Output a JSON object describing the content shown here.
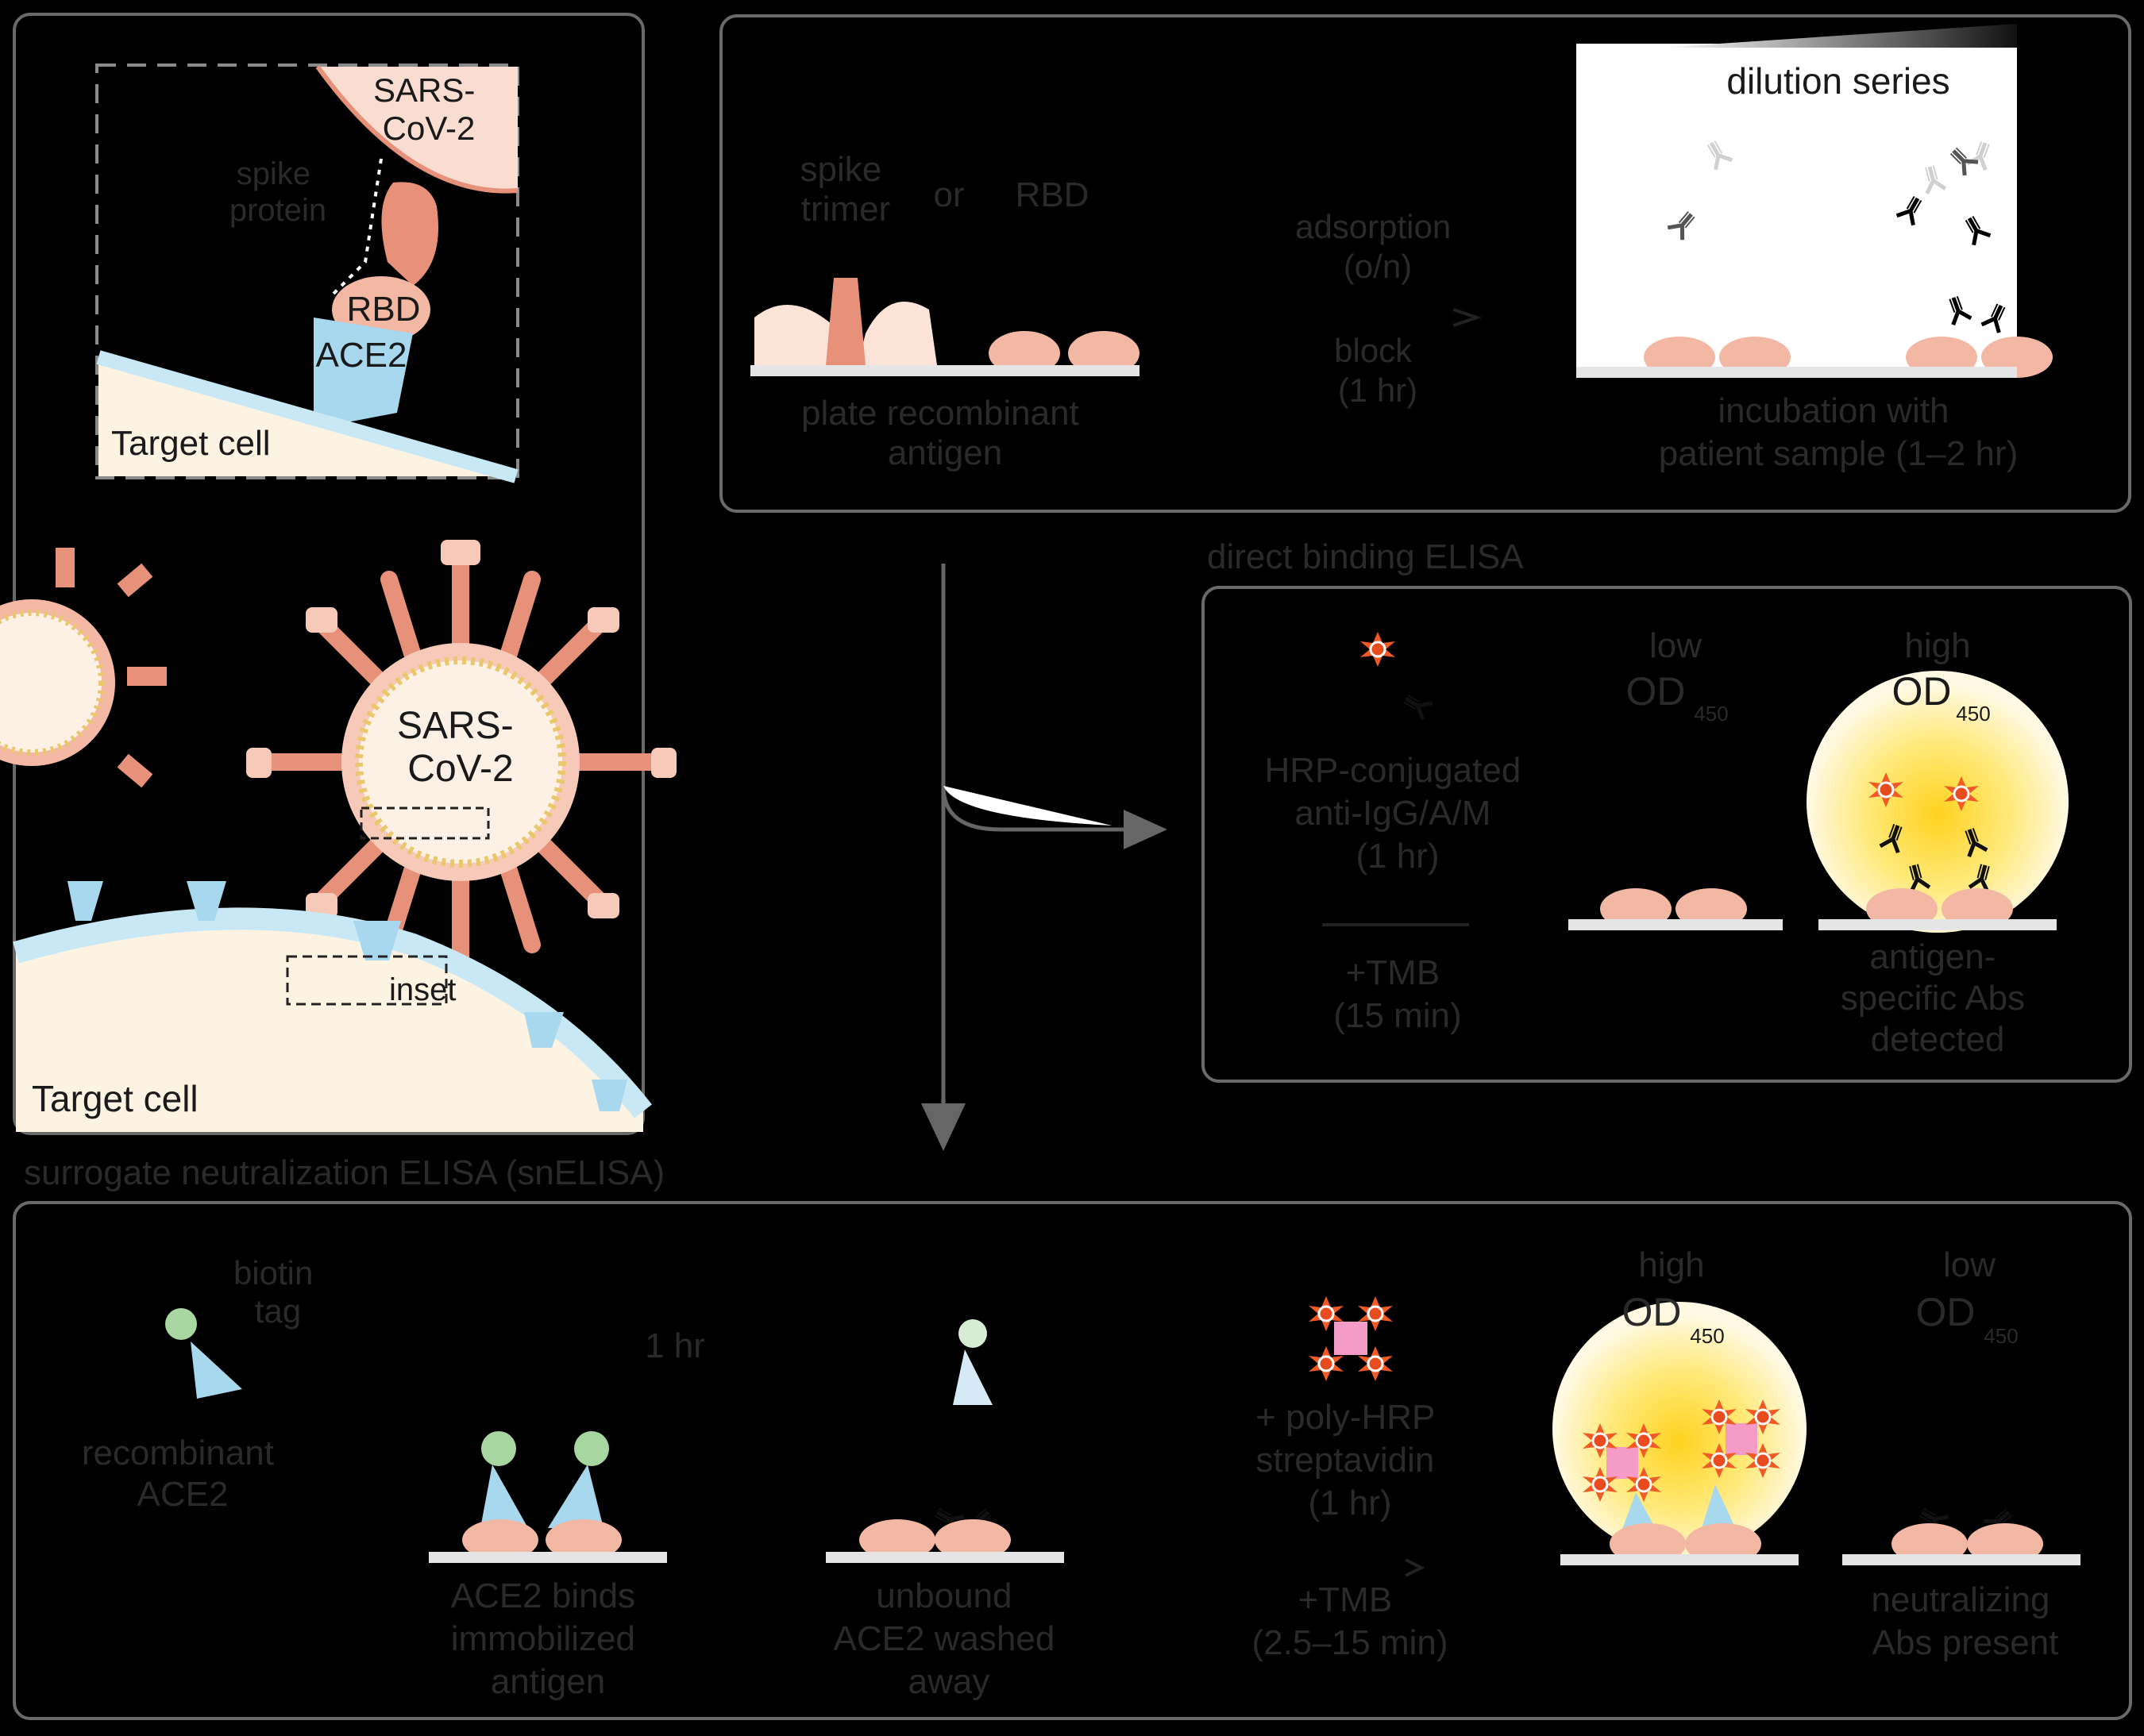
{
  "virus_panel": {
    "inset": {
      "virus_label": "SARS-\nCoV-2",
      "spike_label": "spike\nprotein",
      "rbd_label": "RBD",
      "ace2_label": "ACE2",
      "cell_label": "Target cell"
    },
    "main": {
      "virus_label": "SARS-\nCoV-2",
      "inset_label": "inset",
      "cell_label": "Target cell"
    }
  },
  "coating": {
    "spike_label": "spike\ntrimer",
    "or_label": "or",
    "rbd_label": "RBD",
    "plate_label": "plate recombinant\nantigen",
    "adsorption_label": "adsorption\n(o/n)",
    "block_label": "block\n(1 hr)",
    "dilution_label": "dilution series",
    "incubation_label": "incubation with\npatient sample (1–2 hr)"
  },
  "direct_elisa": {
    "title": "direct binding ELISA",
    "conjugate_label": "HRP-conjugated\nanti-IgG/A/M\n(1 hr)",
    "tmb_label": "+TMB\n(15 min)",
    "low_label": "low",
    "low_od": "OD",
    "low_sub": "450",
    "high_label": "high",
    "high_od": "OD",
    "high_sub": "450",
    "detected_label": "antigen-\nspecific Abs\ndetected"
  },
  "sv_elisa": {
    "title": "surrogate neutralization ELISA (snELISA)",
    "biotin_label": "biotin\ntag",
    "ace2_label": "recombinant\nACE2",
    "time_label": "1 hr",
    "binds_label": "ACE2 binds\nimmobilized\nantigen",
    "washed_label": "unbound\nACE2 washed\naway",
    "strep_label": "+ poly-HRP\nstreptavidin\n(1 hr)",
    "tmb_label": "+TMB\n(2.5–15 min)",
    "high_label": "high",
    "high_od": "OD",
    "high_sub": "450",
    "low_label": "low",
    "low_od": "OD",
    "low_sub": "450",
    "neutral_label": "neutralizing\nAbs present"
  },
  "colors": {
    "background": "#000000",
    "salmon": "#e8917a",
    "light_salmon": "#f7c9b8",
    "ace2_blue": "#a8d8ee",
    "cell_cream": "#fdf3e3",
    "glow_yellow": "#ffe066",
    "hrp_red": "#e84b1d",
    "biotin_green": "#a8d6a0",
    "streptavidin_pink": "#f49bc8",
    "panel_white": "#ffffff"
  }
}
